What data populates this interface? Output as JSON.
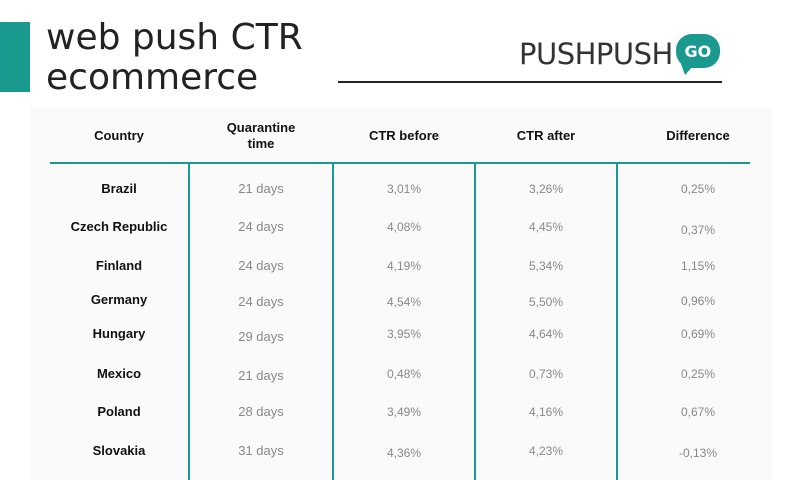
{
  "title": {
    "line1": "web push CTR",
    "line2": "ecommerce"
  },
  "logo": {
    "text": "PUSHPUSH",
    "badge": "GO"
  },
  "colors": {
    "accent": "#1a9a8e",
    "text": "#111111",
    "muted": "#888888"
  },
  "table": {
    "headers": {
      "country": "Country",
      "quarantine_line1": "Quarantine",
      "quarantine_line2": "time",
      "ctr_before": "CTR before",
      "ctr_after": "CTR after",
      "difference": "Difference"
    },
    "rows": [
      {
        "country": "Brazil",
        "quarantine": "21 days",
        "ctr_before": "3,01%",
        "ctr_after": "3,26%",
        "difference": "0,25%"
      },
      {
        "country": "Czech Republic",
        "quarantine": "24 days",
        "ctr_before": "4,08%",
        "ctr_after": "4,45%",
        "difference": "0,37%"
      },
      {
        "country": "Finland",
        "quarantine": "24 days",
        "ctr_before": "4,19%",
        "ctr_after": "5,34%",
        "difference": "1,15%"
      },
      {
        "country": "Germany",
        "quarantine": "24 days",
        "ctr_before": "4,54%",
        "ctr_after": "5,50%",
        "difference": "0,96%"
      },
      {
        "country": "Hungary",
        "quarantine": "29 days",
        "ctr_before": "3,95%",
        "ctr_after": "4,64%",
        "difference": "0,69%"
      },
      {
        "country": "Mexico",
        "quarantine": "21 days",
        "ctr_before": "0,48%",
        "ctr_after": "0,73%",
        "difference": "0,25%"
      },
      {
        "country": "Poland",
        "quarantine": "28 days",
        "ctr_before": "3,49%",
        "ctr_after": "4,16%",
        "difference": "0,67%"
      },
      {
        "country": "Slovakia",
        "quarantine": "31 days",
        "ctr_before": "4,36%",
        "ctr_after": "4,23%",
        "difference": "-0,13%"
      }
    ]
  }
}
